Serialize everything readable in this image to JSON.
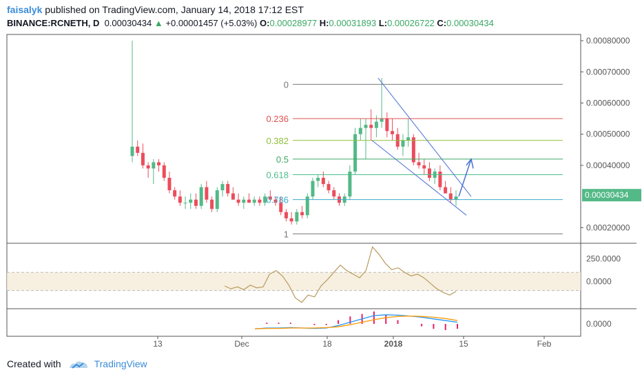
{
  "header": {
    "author": "faisalyk",
    "published_text": "published on TradingView.com, January 14, 2018 17:12 EST",
    "symbol": "BINANCE:RCNETH, D",
    "last": "0.00030434",
    "change": "+0.00001457 (+5.03%)",
    "open_label": "O:",
    "open": "0.00028977",
    "high_label": "H:",
    "high": "0.00031893",
    "low_label": "L:",
    "low": "0.00026722",
    "close_label": "C:",
    "close": "0.00030434"
  },
  "footer": {
    "created_with": "Created with",
    "brand": "TradingView"
  },
  "colors": {
    "up": "#53b987",
    "down": "#eb4d5c",
    "fib_line": "#777777",
    "channel": "#4a6fd4",
    "cci": "#b79a5c",
    "macd": "#2196f3",
    "signal": "#ff9800"
  },
  "chart_data": {
    "type": "candlestick",
    "price_axis": {
      "min": 0.00015,
      "max": 0.00082,
      "ticks": [
        "0.00080000",
        "0.00070000",
        "0.00060000",
        "0.00050000",
        "0.00040000",
        "0.00020000"
      ],
      "tick_values": [
        0.0008,
        0.0007,
        0.0006,
        0.0005,
        0.0004,
        0.0002
      ]
    },
    "current_price_label": "0.00030434",
    "x_tick_labels": [
      "13",
      "Dec",
      "18",
      "2018",
      "15",
      "Feb"
    ],
    "candles": [
      [
        0.00043,
        0.0008,
        0.00041,
        0.00046
      ],
      [
        0.00046,
        0.00048,
        0.00043,
        0.00044
      ],
      [
        0.00044,
        0.00047,
        0.00039,
        0.0004
      ],
      [
        0.0004,
        0.00041,
        0.00036,
        0.00039
      ],
      [
        0.00039,
        0.00042,
        0.00034,
        0.00041
      ],
      [
        0.00041,
        0.00042,
        0.00038,
        0.0004
      ],
      [
        0.0004,
        0.00041,
        0.00035,
        0.00036
      ],
      [
        0.00036,
        0.00038,
        0.00031,
        0.00032
      ],
      [
        0.00032,
        0.00033,
        0.00029,
        0.0003
      ],
      [
        0.0003,
        0.00032,
        0.00027,
        0.00028
      ],
      [
        0.00028,
        0.0003,
        0.00026,
        0.00028
      ],
      [
        0.00028,
        0.00031,
        0.00026,
        0.00029
      ],
      [
        0.00029,
        0.00031,
        0.00026,
        0.00027
      ],
      [
        0.00027,
        0.00034,
        0.00026,
        0.00033
      ],
      [
        0.00033,
        0.00035,
        0.00028,
        0.00029
      ],
      [
        0.00029,
        0.0003,
        0.00025,
        0.00026
      ],
      [
        0.00026,
        0.00033,
        0.00025,
        0.00032
      ],
      [
        0.00032,
        0.00035,
        0.0003,
        0.00034
      ],
      [
        0.00034,
        0.00035,
        0.0003,
        0.00031
      ],
      [
        0.00031,
        0.00033,
        0.00029,
        0.00029
      ],
      [
        0.00029,
        0.00031,
        0.00027,
        0.00028
      ],
      [
        0.00028,
        0.0003,
        0.00026,
        0.00029
      ],
      [
        0.00029,
        0.00031,
        0.00028,
        0.00028
      ],
      [
        0.00028,
        0.0003,
        0.00027,
        0.00029
      ],
      [
        0.00029,
        0.0003,
        0.00027,
        0.00028
      ],
      [
        0.00028,
        0.00031,
        0.00027,
        0.0003
      ],
      [
        0.0003,
        0.00032,
        0.00029,
        0.00029
      ],
      [
        0.00029,
        0.0003,
        0.00027,
        0.00028
      ],
      [
        0.00028,
        0.0003,
        0.00024,
        0.00025
      ],
      [
        0.00025,
        0.00026,
        0.00022,
        0.00023
      ],
      [
        0.00023,
        0.00025,
        0.00021,
        0.00022
      ],
      [
        0.00022,
        0.00026,
        0.00021,
        0.00025
      ],
      [
        0.00025,
        0.00027,
        0.00023,
        0.00024
      ],
      [
        0.00024,
        0.00031,
        0.00023,
        0.0003
      ],
      [
        0.0003,
        0.00036,
        0.00029,
        0.00035
      ],
      [
        0.00035,
        0.00037,
        0.00033,
        0.00036
      ],
      [
        0.00036,
        0.00038,
        0.00033,
        0.00034
      ],
      [
        0.00034,
        0.00035,
        0.00031,
        0.00032
      ],
      [
        0.00032,
        0.00033,
        0.00029,
        0.0003
      ],
      [
        0.0003,
        0.00031,
        0.00027,
        0.00028
      ],
      [
        0.00028,
        0.00031,
        0.00027,
        0.0003
      ],
      [
        0.0003,
        0.0004,
        0.00029,
        0.00038
      ],
      [
        0.00038,
        0.00052,
        0.00037,
        0.0005
      ],
      [
        0.0005,
        0.00055,
        0.00048,
        0.00052
      ],
      [
        0.00052,
        0.00055,
        0.00042,
        0.00053
      ],
      [
        0.00053,
        0.00058,
        0.00048,
        0.00052
      ],
      [
        0.00052,
        0.00056,
        0.00049,
        0.00054
      ],
      [
        0.00054,
        0.00068,
        0.00052,
        0.00055
      ],
      [
        0.00055,
        0.00057,
        0.00049,
        0.00051
      ],
      [
        0.00051,
        0.00055,
        0.00048,
        0.0005
      ],
      [
        0.0005,
        0.00052,
        0.00045,
        0.00046
      ],
      [
        0.00046,
        0.0005,
        0.00043,
        0.00048
      ],
      [
        0.00048,
        0.00055,
        0.00046,
        0.00049
      ],
      [
        0.00049,
        0.0005,
        0.0004,
        0.00041
      ],
      [
        0.00041,
        0.00044,
        0.00039,
        0.0004
      ],
      [
        0.0004,
        0.00042,
        0.00037,
        0.00039
      ],
      [
        0.00039,
        0.00041,
        0.00035,
        0.00036
      ],
      [
        0.00036,
        0.00039,
        0.00034,
        0.00038
      ],
      [
        0.00038,
        0.0004,
        0.00032,
        0.00033
      ],
      [
        0.00033,
        0.00035,
        0.00031,
        0.00031
      ],
      [
        0.00031,
        0.00033,
        0.00028,
        0.00029
      ],
      [
        0.00029,
        0.00032,
        0.00027,
        0.0003
      ]
    ],
    "fib_levels": [
      {
        "label": "0",
        "price": 0.00066,
        "color": "#777777"
      },
      {
        "label": "0.236",
        "price": 0.00055,
        "color": "#e05050"
      },
      {
        "label": "0.382",
        "price": 0.00048,
        "color": "#8fbf3a"
      },
      {
        "label": "0.5",
        "price": 0.00042,
        "color": "#3aa865"
      },
      {
        "label": "0.618",
        "price": 0.00037,
        "color": "#4cbf8a"
      },
      {
        "label": "0.786",
        "price": 0.00029,
        "color": "#3aa8c8"
      },
      {
        "label": "1",
        "price": 0.00018,
        "color": "#777777"
      }
    ],
    "cci": {
      "axis_ticks": [
        "250.0000",
        "0.0000"
      ],
      "axis_values": [
        250,
        0
      ],
      "band": [
        100,
        -100
      ],
      "values": [
        -50,
        -80,
        -60,
        -90,
        -40,
        -70,
        -60,
        80,
        120,
        60,
        -40,
        -180,
        -230,
        -150,
        -170,
        -50,
        20,
        100,
        180,
        120,
        80,
        40,
        120,
        380,
        300,
        200,
        130,
        150,
        100,
        60,
        80,
        40,
        -20,
        -80,
        -120,
        -150,
        -110
      ]
    },
    "macd": {
      "axis_ticks": [
        "0.0000"
      ],
      "axis_values": [
        0
      ],
      "macd": [
        -0.6,
        -0.5,
        -0.5,
        -0.45,
        -0.5,
        -0.55,
        -0.5,
        -0.2,
        0.2,
        0.6,
        1.0,
        1.1,
        1.05,
        0.95,
        0.8,
        0.6,
        0.4,
        0.2
      ],
      "signal": [
        -0.6,
        -0.55,
        -0.55,
        -0.5,
        -0.5,
        -0.5,
        -0.45,
        -0.35,
        -0.1,
        0.2,
        0.5,
        0.75,
        0.9,
        0.95,
        0.9,
        0.8,
        0.65,
        0.4
      ]
    }
  }
}
